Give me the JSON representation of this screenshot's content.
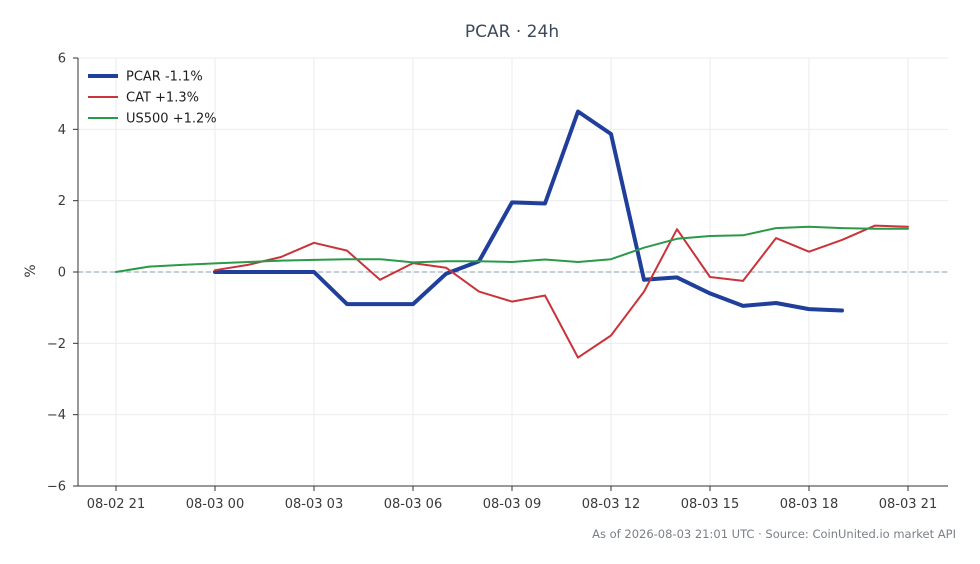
{
  "chart_data": {
    "type": "line",
    "title": "PCAR · 24h",
    "xlabel": "",
    "ylabel": "%",
    "ylim": [
      -6,
      6
    ],
    "yticks": [
      -6,
      -4,
      -2,
      0,
      2,
      4,
      6
    ],
    "ytick_labels": [
      "−6",
      "−4",
      "−2",
      "0",
      "2",
      "4",
      "6"
    ],
    "x_ticks": [
      "08-02 21",
      "08-03 00",
      "08-03 03",
      "08-03 06",
      "08-03 09",
      "08-03 12",
      "08-03 15",
      "08-03 18",
      "08-03 21"
    ],
    "x_hours": [
      "08-02 21",
      "08-02 22",
      "08-02 23",
      "08-03 00",
      "08-03 01",
      "08-03 02",
      "08-03 03",
      "08-03 04",
      "08-03 05",
      "08-03 06",
      "08-03 07",
      "08-03 08",
      "08-03 09",
      "08-03 10",
      "08-03 11",
      "08-03 12",
      "08-03 13",
      "08-03 14",
      "08-03 15",
      "08-03 16",
      "08-03 17",
      "08-03 18",
      "08-03 19",
      "08-03 20",
      "08-03 21"
    ],
    "grid": true,
    "zero_line": true,
    "legend_position": "top-left",
    "series": [
      {
        "name": "PCAR -1.1%",
        "color": "#1f3f9a",
        "values": [
          null,
          null,
          null,
          0.0,
          0.0,
          0.0,
          0.0,
          -0.9,
          -0.9,
          -0.9,
          -0.05,
          0.3,
          1.95,
          1.92,
          4.5,
          3.87,
          -0.22,
          -0.15,
          -0.6,
          -0.95,
          -0.87,
          -1.04,
          -1.08,
          null,
          null
        ]
      },
      {
        "name": "CAT +1.3%",
        "color": "#c9333a",
        "values": [
          null,
          null,
          null,
          0.05,
          0.2,
          0.42,
          0.82,
          0.6,
          -0.22,
          0.25,
          0.12,
          -0.55,
          -0.83,
          -0.66,
          -2.4,
          -1.78,
          -0.55,
          1.2,
          -0.14,
          -0.25,
          0.95,
          0.57,
          0.9,
          1.3,
          1.27
        ]
      },
      {
        "name": "US500 +1.2%",
        "color": "#2a9a4a",
        "values": [
          0.0,
          0.15,
          0.2,
          0.24,
          0.28,
          0.32,
          0.34,
          0.36,
          0.36,
          0.27,
          0.3,
          0.3,
          0.28,
          0.35,
          0.28,
          0.36,
          0.68,
          0.93,
          1.01,
          1.03,
          1.23,
          1.27,
          1.23,
          1.21,
          1.21
        ]
      }
    ]
  },
  "footer": "As of 2026-08-03 21:01 UTC · Source: CoinUnited.io market API"
}
